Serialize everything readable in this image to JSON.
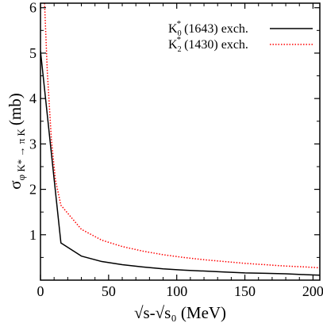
{
  "chart_data": {
    "type": "line",
    "xlabel": "√s-√s₀ (MeV)",
    "ylabel": "σ",
    "ylabel_sub": "φ K* → π K",
    "ylabel_unit": "(mb)",
    "xlim": [
      0,
      205
    ],
    "ylim": [
      0,
      6.1
    ],
    "xticks": [
      0,
      50,
      100,
      150,
      200
    ],
    "yticks": [
      1,
      2,
      3,
      4,
      5,
      6
    ],
    "grid": false,
    "legend_position": "top-right",
    "series": [
      {
        "name": "K₀* (1643) exch.",
        "legend_main": "K",
        "legend_sub": "0",
        "legend_sup": "*",
        "legend_rest": " (1643) exch.",
        "color": "#000000",
        "dash": "solid",
        "x": [
          0,
          15,
          30,
          45,
          60,
          75,
          90,
          105,
          120,
          135,
          150,
          165,
          180,
          195,
          205
        ],
        "y": [
          5.05,
          0.82,
          0.53,
          0.41,
          0.34,
          0.29,
          0.25,
          0.22,
          0.2,
          0.18,
          0.16,
          0.15,
          0.14,
          0.12,
          0.11
        ]
      },
      {
        "name": "K₂* (1430) exch.",
        "legend_main": "K",
        "legend_sub": "2",
        "legend_sup": "*",
        "legend_rest": " (1430) exch.",
        "color": "#ff0000",
        "dash": "dotted",
        "x": [
          3,
          5,
          8,
          11,
          15,
          30,
          45,
          60,
          75,
          90,
          105,
          120,
          135,
          150,
          165,
          180,
          195,
          205
        ],
        "y": [
          6.1,
          4.6,
          3.1,
          2.2,
          1.65,
          1.12,
          0.88,
          0.74,
          0.64,
          0.56,
          0.5,
          0.45,
          0.41,
          0.37,
          0.34,
          0.31,
          0.29,
          0.27
        ]
      }
    ]
  }
}
